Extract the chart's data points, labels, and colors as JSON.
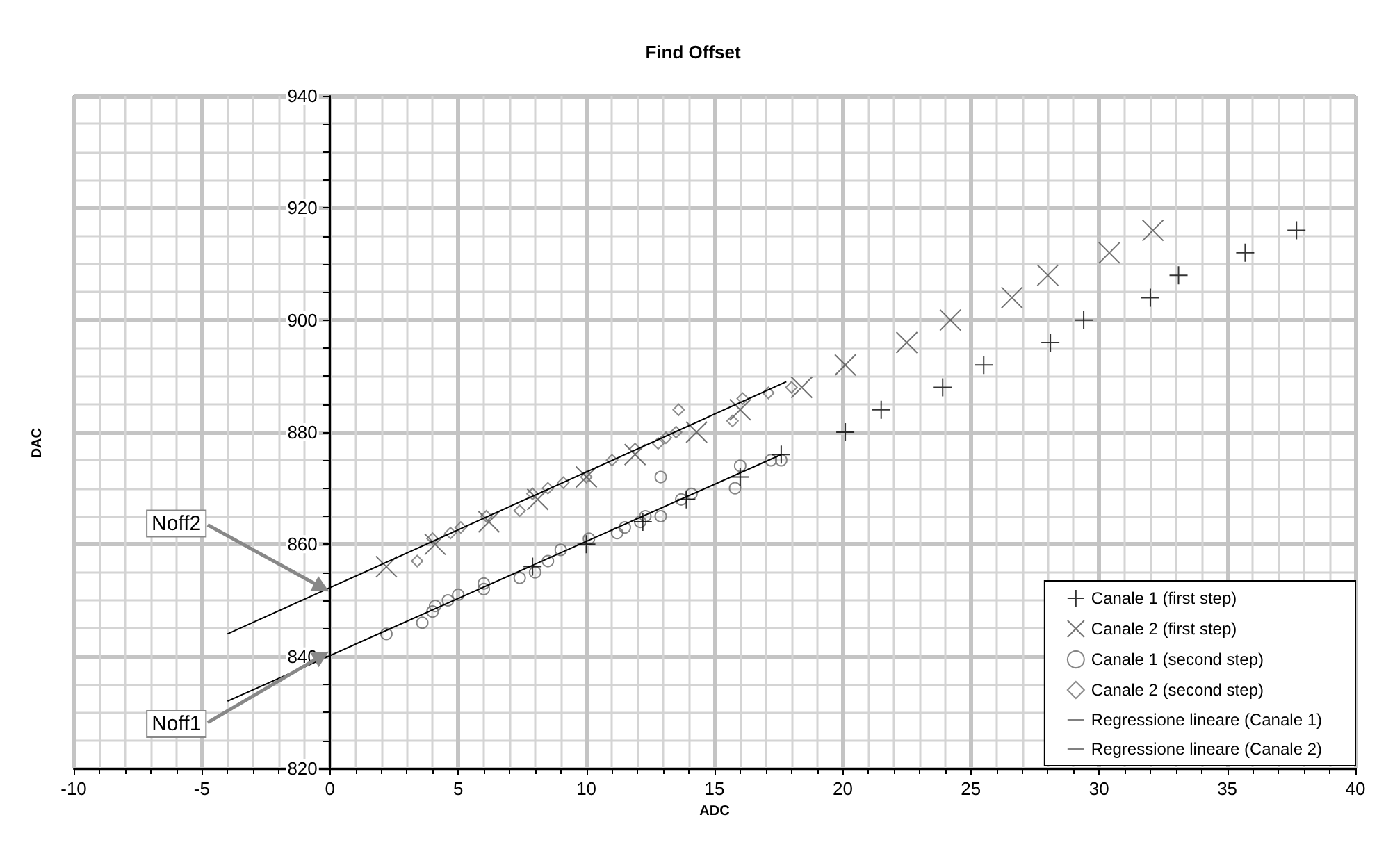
{
  "chart_data": {
    "type": "scatter",
    "title": "Find Offset",
    "xlabel": "ADC",
    "ylabel": "DAC",
    "xlim": [
      -10,
      40
    ],
    "xticks": [
      -10,
      -5,
      0,
      5,
      10,
      15,
      20,
      25,
      30,
      35,
      40
    ],
    "ylim": [
      820,
      940
    ],
    "yticks": [
      820,
      840,
      860,
      880,
      900,
      920,
      940
    ],
    "grid": true,
    "legend": "bottom right",
    "series": [
      {
        "name": "Canale 1 (first step)",
        "color": "#000000",
        "marker": "cross",
        "x": [
          7.9,
          10.0,
          12.2,
          13.9,
          16.0,
          17.6,
          20.1,
          21.5,
          23.9,
          25.5,
          28.1,
          29.4,
          32.0,
          33.1,
          35.7,
          37.7
        ],
        "values": [
          856,
          860,
          864,
          868,
          872,
          876,
          880,
          884,
          888,
          892,
          896,
          900,
          904,
          908,
          912,
          916
        ]
      },
      {
        "name": "Canale 2 (first step)",
        "color": "#505050",
        "marker": "x",
        "x": [
          2.2,
          4.1,
          6.2,
          8.1,
          10.0,
          11.9,
          14.3,
          16.0,
          18.4,
          20.1,
          22.5,
          24.2,
          26.6,
          28.0,
          30.4,
          32.1
        ],
        "values": [
          856,
          860,
          864,
          868,
          872,
          876,
          880,
          884,
          888,
          892,
          896,
          900,
          904,
          908,
          912,
          916
        ]
      },
      {
        "name": "Canale 1 (second step)",
        "color": "#666666",
        "marker": "circle",
        "x": [
          2.2,
          3.6,
          4.0,
          4.1,
          4.6,
          5.0,
          6.0,
          6.0,
          7.4,
          8.0,
          8.5,
          9.0,
          10.1,
          11.2,
          11.5,
          12.1,
          12.3,
          12.9,
          12.9,
          13.7,
          14.1,
          15.8,
          16.0,
          17.2,
          17.6
        ],
        "values": [
          844,
          846,
          848,
          849,
          850,
          851,
          852,
          853,
          854,
          855,
          857,
          859,
          861,
          862,
          863,
          864,
          865,
          872,
          865,
          868,
          869,
          870,
          874,
          875,
          875
        ]
      },
      {
        "name": "Canale 2 (second step)",
        "color": "#707070",
        "marker": "diamond",
        "x": [
          3.4,
          4.0,
          4.7,
          5.1,
          6.1,
          7.4,
          7.9,
          8.5,
          9.1,
          10.0,
          11.0,
          11.9,
          12.8,
          13.1,
          13.5,
          13.6,
          15.7,
          16.1,
          17.1,
          18.0
        ],
        "values": [
          857,
          861,
          862,
          863,
          865,
          866,
          869,
          870,
          871,
          872,
          875,
          877,
          878,
          879,
          880,
          884,
          882,
          886,
          887,
          888
        ]
      },
      {
        "name": "Regressione lineare (Canale 1)",
        "type": "line",
        "color": "#000000",
        "marker": "none",
        "x": [
          -4,
          17.6
        ],
        "values": [
          832,
          876
        ]
      },
      {
        "name": "Regressione lineare (Canale 2)",
        "type": "line",
        "color": "#000000",
        "marker": "none",
        "x": [
          -4,
          17.8
        ],
        "values": [
          844,
          889
        ]
      }
    ],
    "annotations": [
      {
        "text": "Noff2",
        "x": 0,
        "y": 852.3
      },
      {
        "text": "Noff1",
        "x": 0,
        "y": 840.1
      }
    ]
  }
}
